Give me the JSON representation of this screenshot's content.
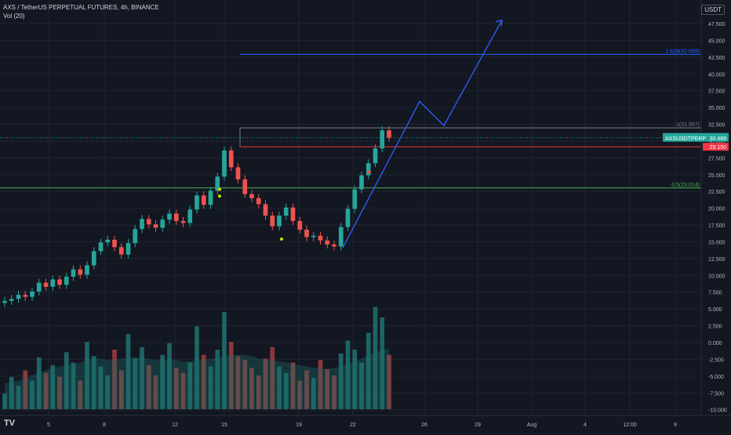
{
  "header": {
    "symbol_line": "AXS / TetherUS PERPETUAL FUTURES, 4h, BINANCE",
    "indicator_line": "Vol (20)",
    "currency": "USDT",
    "logo": "TV"
  },
  "colors": {
    "background": "#131722",
    "grid": "#1f2430",
    "bull": "#26a69a",
    "bear": "#ef5350",
    "drawing": "#2962ff",
    "fib_top": "#2962ff",
    "fib_one": "#787b86",
    "fib_half": "#4caf50",
    "support": "#f23645",
    "marker_yellow": "#c6e400"
  },
  "chart_data": {
    "type": "candlestick",
    "symbol": "AXSUSDTPERP",
    "timeframe": "4h",
    "x_ticks": [
      "5",
      "8",
      "12",
      "15",
      "19",
      "22",
      "26",
      "29",
      "Aug",
      "4",
      "12:00",
      "9"
    ],
    "y_ticks": [
      "47.500",
      "45.000",
      "42.500",
      "40.000",
      "37.500",
      "35.000",
      "32.500",
      "30.000",
      "27.500",
      "25.000",
      "22.500",
      "20.000",
      "17.500",
      "15.000",
      "12.500",
      "10.000",
      "7.500",
      "5.000",
      "2.500",
      "0.000",
      "-2.500",
      "-5.000",
      "-7.500",
      "-10.000"
    ],
    "price_ylim": [
      4.5,
      48.5
    ],
    "volume_ticks": [
      "5.000",
      "2.500",
      "0.000",
      "-2.500",
      "-5.000",
      "-7.500",
      "-10.000"
    ],
    "price_series": [
      6.2,
      6.5,
      7.1,
      6.8,
      7.6,
      8.9,
      8.3,
      9.4,
      8.6,
      9.8,
      10.9,
      10.1,
      11.5,
      13.6,
      14.9,
      15.3,
      14.2,
      13.1,
      14.8,
      16.9,
      18.4,
      17.6,
      17.1,
      18.3,
      19.2,
      18.1,
      17.8,
      19.8,
      21.9,
      20.5,
      22.6,
      24.7,
      28.6,
      26.1,
      24.3,
      22.1,
      21.5,
      20.6,
      18.9,
      17.3,
      18.9,
      20.1,
      18.1,
      16.8,
      15.7,
      15.9,
      15.2,
      14.6,
      14.3,
      17.2,
      19.9,
      22.8,
      24.9,
      26.7,
      28.9,
      31.6,
      30.5
    ],
    "levels": [
      {
        "label": "1.618(42.899)",
        "value": 42.899
      },
      {
        "label": "1(31.957)",
        "value": 31.957
      },
      {
        "label": "0.5(23.014)",
        "value": 23.014
      }
    ],
    "support_line": 29.15,
    "last_price": {
      "label": "AXSUSDTPERP",
      "value": "30.489"
    },
    "support_label": "29.150",
    "projection": [
      {
        "x": "22",
        "y": 14.1
      },
      {
        "x": "25",
        "y": 35.9
      },
      {
        "x": "27",
        "y": 32.3
      },
      {
        "x": "31",
        "y": 48.0
      }
    ],
    "dot_markers": [
      {
        "x": "15",
        "y": 22.8
      },
      {
        "x": "15",
        "y": 21.8
      },
      {
        "x": "17",
        "y": 15.4
      },
      {
        "x": "22",
        "y": 25.4
      }
    ],
    "volume": [
      1.2,
      2.5,
      1.8,
      3.0,
      2.2,
      4.0,
      2.8,
      3.4,
      2.5,
      4.4,
      3.6,
      2.2,
      5.2,
      4.1,
      3.3,
      2.6,
      4.6,
      3.0,
      5.8,
      3.9,
      4.8,
      3.4,
      2.6,
      4.2,
      5.1,
      3.2,
      2.8,
      3.6,
      6.4,
      4.2,
      3.3,
      4.6,
      7.5,
      5.2,
      4.1,
      3.8,
      3.2,
      2.6,
      3.9,
      4.8,
      3.3,
      2.8,
      3.6,
      2.2,
      3.0,
      2.4,
      3.8,
      3.1,
      2.6,
      4.3,
      5.3,
      4.6,
      3.6,
      5.9,
      7.9,
      7.1,
      4.2
    ],
    "volume_ma": [
      2.0,
      2.1,
      2.2,
      2.4,
      2.6,
      2.8,
      3.0,
      3.2,
      3.3,
      3.4,
      3.5,
      3.6,
      3.8,
      3.9,
      3.9,
      3.8,
      3.8,
      3.9,
      4.0,
      4.0,
      4.0,
      3.9,
      3.8,
      3.8,
      3.8,
      3.8,
      3.7,
      3.7,
      3.8,
      3.8,
      3.9,
      4.0,
      4.1,
      4.2,
      4.2,
      4.2,
      4.1,
      3.9,
      3.8,
      3.8,
      3.7,
      3.6,
      3.5,
      3.4,
      3.3,
      3.2,
      3.2,
      3.1,
      3.2,
      3.3,
      3.5,
      3.7,
      3.9,
      4.2,
      4.4,
      4.6,
      4.7
    ]
  }
}
